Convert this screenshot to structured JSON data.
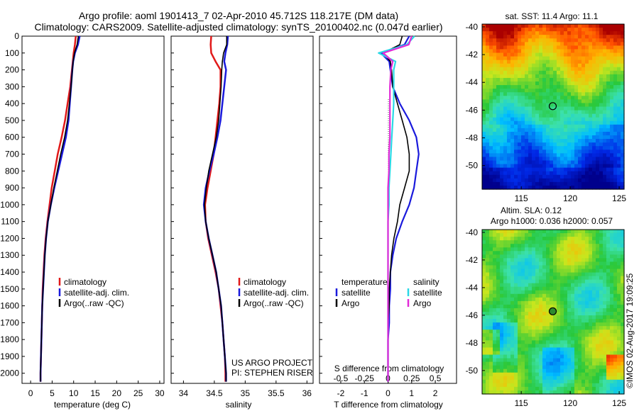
{
  "header": {
    "line1": "Argo profile: aoml 1901413_7 02-Apr-2010 45.712S 118.217E (DM data)",
    "line2": "Climatology: CARS2009. Satellite-adjusted climatology: synTS_20100402.nc (0.047d earlier)"
  },
  "colors": {
    "climatology": "#e11919",
    "satellite": "#1a1adc",
    "argo": "#000000",
    "satellite_salinity": "#2ad8e6",
    "argo_salinity": "#e22ad8"
  },
  "depth_axis": {
    "ticks": [
      "0",
      "100",
      "200",
      "300",
      "400",
      "500",
      "600",
      "700",
      "800",
      "900",
      "1000",
      "1100",
      "1200",
      "1300",
      "1400",
      "1500",
      "1600",
      "1700",
      "1800",
      "1900",
      "2000"
    ]
  },
  "panels": {
    "temperature": {
      "xlabel": "temperature (deg C)",
      "xticks": [
        "0",
        "5",
        "10",
        "15",
        "20",
        "25",
        "30"
      ],
      "legend": [
        "climatology",
        "satellite-adj. clim.",
        "Argo(..raw -QC)"
      ]
    },
    "salinity": {
      "xlabel": "salinity",
      "xticks": [
        "34",
        "34.5",
        "35",
        "35.5",
        "36"
      ],
      "legend": [
        "climatology",
        "satellite-adj. clim.",
        "Argo(..raw -QC)"
      ],
      "credit1": "US ARGO PROJECT",
      "credit2": "PI: STEPHEN RISER"
    },
    "difference": {
      "xlabel": "T difference from climatology",
      "xticks": [
        "-2",
        "-1",
        "0",
        "1",
        "2"
      ],
      "top_title": "S difference from climatology",
      "top_ticks": [
        "-0.5",
        "-0.25",
        "0",
        "0.25",
        "0.5"
      ],
      "legend_temp_title": "temperature",
      "legend_temp": [
        "satellite",
        "Argo"
      ],
      "legend_sal_title": "salinity",
      "legend_sal": [
        "satellite",
        "Argo"
      ]
    }
  },
  "maps": {
    "sst": {
      "title": "sat. SST: 11.4 Argo: 11.1",
      "yticks": [
        "-40",
        "-42",
        "-44",
        "-46",
        "-48",
        "-50"
      ],
      "xticks": [
        "115",
        "120",
        "125"
      ]
    },
    "sla": {
      "title1": "Altim. SLA: 0.12",
      "title2": "Argo h1000: 0.036 h2000: 0.057",
      "yticks": [
        "-40",
        "-42",
        "-44",
        "-46",
        "-48",
        "-50"
      ],
      "xticks": [
        "115",
        "120",
        "125"
      ]
    }
  },
  "footer": {
    "stamp": "©IMOS 02-Aug-2017 19:09:25"
  },
  "chart_data": [
    {
      "type": "line",
      "panel": "temperature",
      "xlabel": "temperature (deg C)",
      "ylabel": "",
      "xlim": [
        -2,
        31
      ],
      "ylim": [
        2060,
        0
      ],
      "depth": [
        0,
        50,
        100,
        150,
        200,
        300,
        400,
        500,
        600,
        700,
        800,
        900,
        1000,
        1100,
        1200,
        1300,
        1400,
        1500,
        1600,
        1700,
        1800,
        1900,
        2000,
        2050
      ],
      "series": [
        {
          "name": "climatology",
          "values": [
            10.5,
            10.3,
            10.0,
            9.8,
            9.6,
            9.2,
            8.6,
            8.0,
            7.2,
            6.3,
            5.6,
            4.9,
            4.4,
            3.9,
            3.5,
            3.2,
            3.0,
            2.8,
            2.7,
            2.6,
            2.5,
            2.4,
            2.3,
            2.3
          ]
        },
        {
          "name": "satellite-adj. clim.",
          "values": [
            11.4,
            11.0,
            10.3,
            9.9,
            9.7,
            9.4,
            9.1,
            8.8,
            8.2,
            7.3,
            6.4,
            5.5,
            4.7,
            4.0,
            3.6,
            3.3,
            3.1,
            2.9,
            2.7,
            2.6,
            2.5,
            2.4,
            2.3,
            2.3
          ]
        },
        {
          "name": "Argo(..raw -QC)",
          "values": [
            11.1,
            10.8,
            10.2,
            9.9,
            9.7,
            9.4,
            9.0,
            8.6,
            7.9,
            7.0,
            6.2,
            5.4,
            4.7,
            4.0,
            3.6,
            3.3,
            3.1,
            2.9,
            2.7,
            2.6,
            2.5,
            2.4,
            2.3,
            2.3
          ]
        }
      ]
    },
    {
      "type": "line",
      "panel": "salinity",
      "xlabel": "salinity",
      "ylabel": "",
      "xlim": [
        33.8,
        36.1
      ],
      "ylim": [
        2060,
        0
      ],
      "depth": [
        0,
        50,
        100,
        150,
        200,
        300,
        400,
        500,
        600,
        700,
        800,
        900,
        1000,
        1100,
        1200,
        1300,
        1400,
        1500,
        1600,
        1700,
        1800,
        1900,
        2000,
        2050
      ],
      "series": [
        {
          "name": "climatology",
          "values": [
            34.45,
            34.44,
            34.45,
            34.52,
            34.6,
            34.6,
            34.58,
            34.55,
            34.52,
            34.49,
            34.44,
            34.39,
            34.35,
            34.36,
            34.4,
            34.46,
            34.52,
            34.57,
            34.6,
            34.63,
            34.65,
            34.67,
            34.68,
            34.68
          ]
        },
        {
          "name": "satellite-adj. clim.",
          "values": [
            34.72,
            34.71,
            34.68,
            34.66,
            34.69,
            34.66,
            34.63,
            34.6,
            34.55,
            34.49,
            34.42,
            34.36,
            34.33,
            34.36,
            34.41,
            34.47,
            34.53,
            34.57,
            34.61,
            34.63,
            34.65,
            34.67,
            34.69,
            34.69
          ]
        },
        {
          "name": "Argo(..raw -QC)",
          "values": [
            34.7,
            34.7,
            34.65,
            34.63,
            34.62,
            34.61,
            34.59,
            34.57,
            34.53,
            34.47,
            34.41,
            34.37,
            34.34,
            34.36,
            34.41,
            34.47,
            34.53,
            34.57,
            34.61,
            34.63,
            34.65,
            34.67,
            34.69,
            34.69
          ]
        }
      ]
    },
    {
      "type": "line",
      "panel": "difference",
      "xlabel": "T difference from climatology",
      "top_xlabel": "S difference from climatology",
      "xlim": [
        -2.9,
        2.9
      ],
      "top_xlim": [
        -0.725,
        0.725
      ],
      "ylim": [
        2060,
        0
      ],
      "depth": [
        0,
        50,
        100,
        150,
        200,
        300,
        400,
        500,
        600,
        700,
        800,
        900,
        1000,
        1100,
        1200,
        1300,
        1400,
        1500,
        1600,
        1700,
        1800,
        1900,
        2000,
        2050
      ],
      "series": [
        {
          "name": "temperature satellite",
          "values": [
            0.9,
            0.7,
            -0.3,
            0.05,
            0.1,
            0.2,
            0.5,
            0.9,
            1.2,
            1.3,
            1.2,
            1.1,
            0.9,
            0.6,
            0.35,
            0.2,
            0.1,
            0.1,
            0.05,
            0.05,
            0.0,
            0.0,
            0.0,
            0.0
          ]
        },
        {
          "name": "temperature Argo",
          "values": [
            0.6,
            0.5,
            -0.2,
            0.1,
            0.15,
            0.2,
            0.4,
            0.6,
            0.8,
            0.9,
            0.9,
            0.7,
            0.5,
            0.4,
            0.25,
            0.15,
            0.1,
            0.05,
            0.05,
            0.0,
            0.0,
            0.0,
            0.0,
            0.0
          ]
        },
        {
          "name": "salinity satellite",
          "values": [
            0.28,
            0.2,
            -0.1,
            0.08,
            0.06,
            0.06,
            0.06,
            0.05,
            0.04,
            0.03,
            0.02,
            0.01,
            0.01,
            0.0,
            0.0,
            0.0,
            0.0,
            0.0,
            0.0,
            0.0,
            0.0,
            0.0,
            0.0,
            0.0
          ]
        },
        {
          "name": "salinity Argo",
          "values": [
            0.25,
            0.22,
            -0.05,
            0.05,
            0.03,
            0.02,
            0.02,
            0.02,
            0.02,
            0.01,
            0.01,
            0.0,
            0.0,
            0.0,
            0.0,
            0.0,
            0.0,
            0.0,
            0.0,
            0.0,
            0.0,
            0.0,
            0.0,
            0.0
          ]
        }
      ]
    },
    {
      "type": "heatmap",
      "panel": "sst-map",
      "title": "sat. SST: 11.4 Argo: 11.1",
      "xlim": [
        111,
        125.5
      ],
      "ylim": [
        -51.7,
        -39.8
      ],
      "marker": {
        "lon": 118.217,
        "lat": -45.712
      }
    },
    {
      "type": "heatmap",
      "panel": "sla-map",
      "title": "Altim. SLA: 0.12",
      "xlim": [
        111,
        125.5
      ],
      "ylim": [
        -51.7,
        -39.8
      ],
      "marker": {
        "lon": 118.217,
        "lat": -45.712
      }
    }
  ]
}
